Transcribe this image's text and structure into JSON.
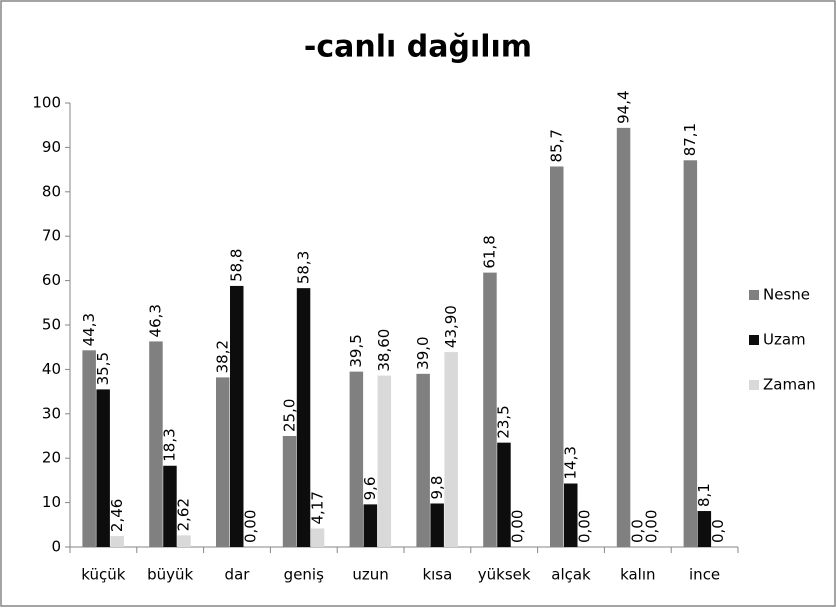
{
  "chart_data": {
    "type": "bar",
    "title": "-canlı dağılım",
    "categories": [
      "küçük",
      "büyük",
      "dar",
      "geniş",
      "uzun",
      "kısa",
      "yüksek",
      "alçak",
      "kalın",
      "ince"
    ],
    "series": [
      {
        "name": "Nesne",
        "color": "#808080",
        "values": [
          44.3,
          46.3,
          38.2,
          25.0,
          39.5,
          39.0,
          61.8,
          85.7,
          94.4,
          87.1
        ],
        "value_labels": [
          "44,3",
          "46,3",
          "38,2",
          "25,0",
          "39,5",
          "39,0",
          "61,8",
          "85,7",
          "94,4",
          "87,1"
        ]
      },
      {
        "name": "Uzam",
        "color": "#0d0d0d",
        "values": [
          35.5,
          18.3,
          58.8,
          58.3,
          9.6,
          9.8,
          23.5,
          14.3,
          0.0,
          8.1
        ],
        "value_labels": [
          "35,5",
          "18,3",
          "58,8",
          "58,3",
          "9,6",
          "9,8",
          "23,5",
          "14,3",
          "0,0",
          "8,1"
        ]
      },
      {
        "name": "Zaman",
        "color": "#d9d9d9",
        "values": [
          2.46,
          2.62,
          0.0,
          4.17,
          38.6,
          43.9,
          0.0,
          0.0,
          0.0,
          0.0
        ],
        "value_labels": [
          "2,46",
          "2,62",
          "0,00",
          "4,17",
          "38,60",
          "43,90",
          "0,00",
          "0,00",
          "0,00",
          "0,0"
        ]
      }
    ],
    "ylim": [
      0,
      100
    ],
    "yticks": [
      0,
      10,
      20,
      30,
      40,
      50,
      60,
      70,
      80,
      90,
      100
    ],
    "legend": "right"
  }
}
